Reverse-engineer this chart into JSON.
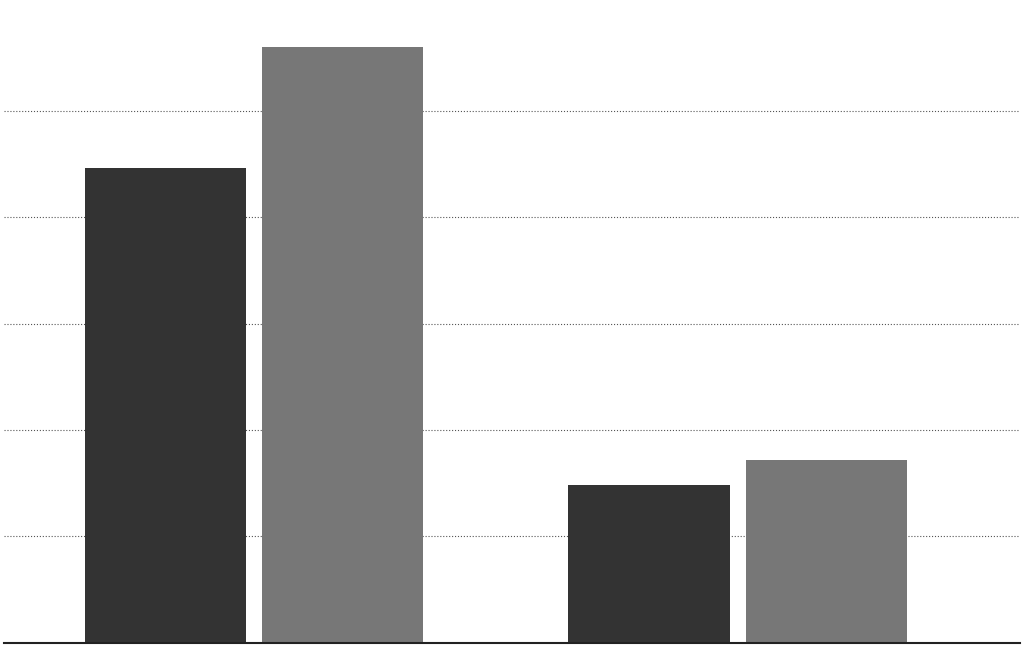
{
  "bar_values": [
    78,
    98,
    26,
    30
  ],
  "bar_positions": [
    1.0,
    2.1,
    4.0,
    5.1
  ],
  "bar_width": 1.0,
  "ylim": [
    0,
    105
  ],
  "xlim": [
    0,
    6.3
  ],
  "background_color": "#ffffff",
  "grid_color": "#555555",
  "grid_linestyle": "dotted",
  "grid_linewidth": 0.8,
  "ytick_positions": [
    17.5,
    35,
    52.5,
    70,
    87.5
  ],
  "figsize": [
    10.24,
    6.47
  ],
  "dpi": 100,
  "dark_bar_color": "#333333",
  "light_bar_color": "#888888",
  "bottom_line_color": "#222222",
  "bottom_line_width": 1.5
}
